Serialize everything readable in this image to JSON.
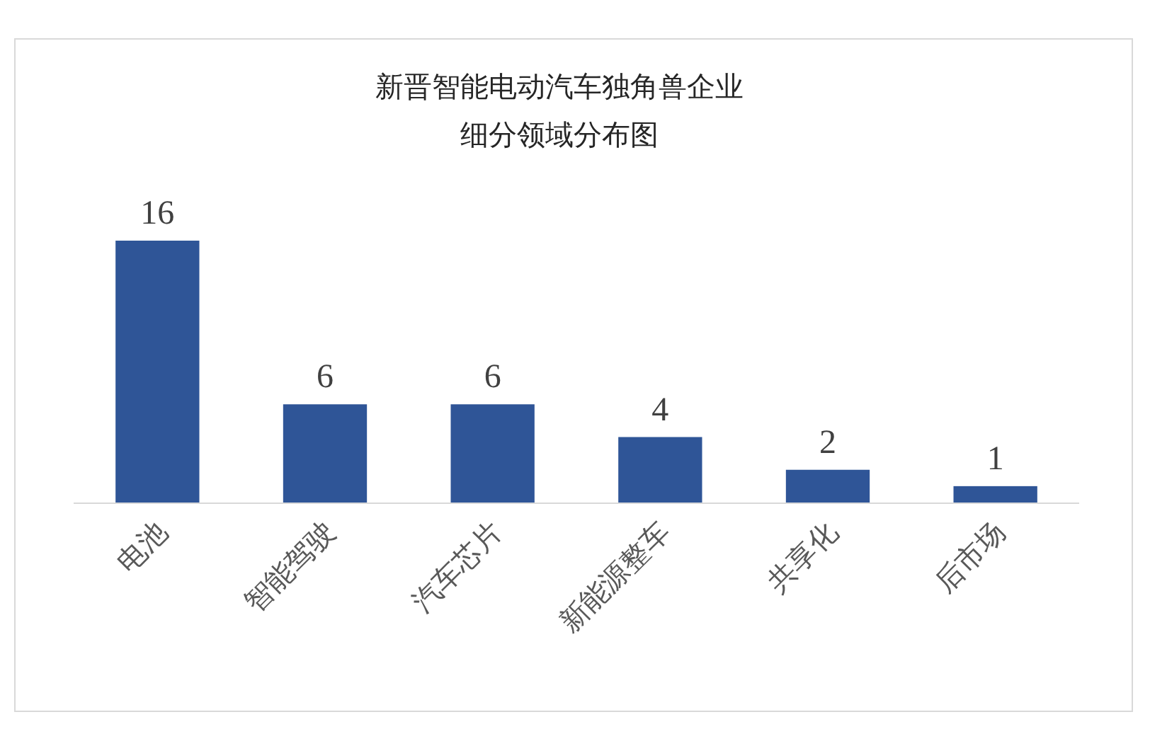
{
  "chart_data": {
    "type": "bar",
    "title": "新晋智能电动汽车独角兽企业细分领域分布图",
    "categories": [
      "电池",
      "智能驾驶",
      "汽车芯片",
      "新能源整车",
      "共享化",
      "后市场"
    ],
    "values": [
      16,
      6,
      6,
      4,
      2,
      1
    ],
    "color": "#2f5597",
    "data_labels": true
  }
}
